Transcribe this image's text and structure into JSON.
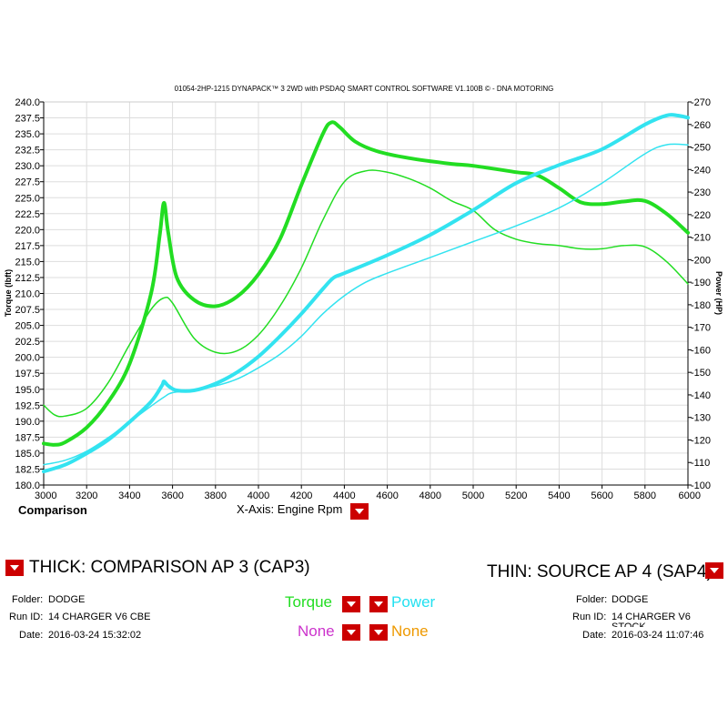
{
  "header": {
    "title": "01054-2HP-1215 DYNAPACK™ 3 2WD with PSDAQ SMART CONTROL SOFTWARE V1.100B © - DNA MOTORING"
  },
  "chart_data": {
    "type": "line",
    "title": "01054-2HP-1215 DYNAPACK™ 3 2WD with PSDAQ SMART CONTROL SOFTWARE V1.100B © - DNA MOTORING",
    "xlabel": "X-Axis: Engine Rpm",
    "ylabel": "Torque (lbft)",
    "y2label": "Power (HP)",
    "xlim": [
      3000,
      6000
    ],
    "ylim": [
      180,
      240
    ],
    "y2lim": [
      100,
      270
    ],
    "grid": true,
    "x_ticks": [
      "3000",
      "3200",
      "3400",
      "3600",
      "3800",
      "4000",
      "4200",
      "4400",
      "4600",
      "4800",
      "5000",
      "5200",
      "5400",
      "5600",
      "5800",
      "6000"
    ],
    "y_ticks": [
      "180.0",
      "182.5",
      "185.0",
      "187.5",
      "190.0",
      "192.5",
      "195.0",
      "197.5",
      "200.0",
      "202.5",
      "205.0",
      "207.5",
      "210.0",
      "212.5",
      "215.0",
      "217.5",
      "220.0",
      "222.5",
      "225.0",
      "227.5",
      "230.0",
      "232.5",
      "235.0",
      "237.5",
      "240.0"
    ],
    "y2_ticks": [
      "100",
      "110",
      "120",
      "130",
      "140",
      "150",
      "160",
      "170",
      "180",
      "190",
      "200",
      "210",
      "220",
      "230",
      "240",
      "250",
      "260",
      "270"
    ],
    "series": [
      {
        "color": "#22dd22",
        "width": "thick",
        "axis": "left",
        "x": [
          3000,
          3050,
          3100,
          3200,
          3300,
          3400,
          3500,
          3540,
          3560,
          3580,
          3620,
          3700,
          3800,
          3900,
          4000,
          4100,
          4200,
          4300,
          4340,
          4380,
          4450,
          4550,
          4700,
          4900,
          5000,
          5200,
          5300,
          5400,
          5500,
          5600,
          5700,
          5800,
          5900,
          6000
        ],
        "y": [
          186.5,
          186.3,
          186.7,
          189.0,
          193.0,
          199.0,
          210.0,
          219.0,
          224.2,
          219.5,
          212.5,
          209.0,
          208.0,
          209.5,
          213.0,
          218.5,
          227.0,
          235.0,
          236.8,
          236.0,
          233.8,
          232.3,
          231.2,
          230.3,
          230.0,
          229.0,
          228.5,
          226.5,
          224.3,
          224.0,
          224.4,
          224.5,
          222.5,
          219.5
        ]
      },
      {
        "color": "#22dd22",
        "width": "thin",
        "axis": "left",
        "x": [
          3000,
          3050,
          3100,
          3200,
          3300,
          3400,
          3500,
          3560,
          3600,
          3700,
          3800,
          3900,
          4000,
          4100,
          4200,
          4300,
          4400,
          4500,
          4600,
          4700,
          4800,
          4900,
          5000,
          5100,
          5200,
          5300,
          5400,
          5500,
          5600,
          5700,
          5800,
          5900,
          6000
        ],
        "y": [
          192.5,
          191.0,
          190.8,
          192.0,
          196.0,
          202.0,
          207.5,
          209.3,
          208.5,
          203.0,
          200.8,
          201.0,
          203.5,
          208.0,
          214.0,
          221.5,
          227.5,
          229.2,
          229.0,
          228.0,
          226.5,
          224.5,
          223.0,
          220.0,
          218.5,
          217.8,
          217.5,
          217.0,
          217.0,
          217.5,
          217.3,
          215.0,
          211.5
        ]
      },
      {
        "color": "#33e3f0",
        "width": "thick",
        "axis": "right",
        "x": [
          3000,
          3100,
          3200,
          3300,
          3400,
          3500,
          3550,
          3560,
          3580,
          3620,
          3700,
          3800,
          3900,
          4000,
          4100,
          4200,
          4300,
          4350,
          4400,
          4600,
          4800,
          5000,
          5200,
          5400,
          5600,
          5800,
          5900,
          5950,
          6000
        ],
        "y": [
          106,
          109,
          114,
          120,
          128,
          137,
          144,
          146,
          144,
          142,
          142,
          145,
          150,
          157,
          166,
          176,
          187,
          192,
          194,
          202,
          211,
          222,
          234,
          242,
          249,
          260,
          264,
          264,
          263
        ]
      },
      {
        "color": "#33e3f0",
        "width": "thin",
        "axis": "right",
        "x": [
          3000,
          3100,
          3200,
          3300,
          3400,
          3500,
          3560,
          3600,
          3700,
          3800,
          3900,
          4000,
          4100,
          4200,
          4300,
          4400,
          4500,
          4600,
          4800,
          5000,
          5200,
          5400,
          5600,
          5800,
          5900,
          6000
        ],
        "y": [
          109,
          111,
          115,
          121,
          128,
          135,
          139,
          141,
          142,
          144,
          147,
          152,
          158,
          166,
          176,
          184,
          190,
          194,
          201,
          208,
          215,
          223,
          234,
          247,
          251,
          251
        ]
      }
    ]
  },
  "xaxis": {
    "label": "X-Axis: Engine Rpm"
  },
  "left_panel": {
    "section_label": "Comparison",
    "heading": "THICK: COMPARISON AP 3 (CAP3)",
    "folder_label": "Folder:",
    "folder_value": "DODGE",
    "run_label": "Run ID:",
    "run_value": "14 CHARGER V6 CBE",
    "date_label": "Date:",
    "date_value": "2016-03-24 15:32:02"
  },
  "right_panel": {
    "heading": "THIN: SOURCE AP 4 (SAP4)",
    "folder_label": "Folder:",
    "folder_value": "DODGE",
    "run_label": "Run ID:",
    "run_value": "14 CHARGER V6",
    "run_value_overflow": "STOCK",
    "date_label": "Date:",
    "date_value": "2016-03-24 11:07:46"
  },
  "selectors": {
    "torque": "Torque",
    "power": "Power",
    "none1": "None",
    "none2": "None",
    "colors": {
      "torque": "#22dd22",
      "power": "#22e0f0",
      "none1": "#cc33cc",
      "none2": "#ee9900",
      "dropdown": "#cc0000"
    }
  }
}
